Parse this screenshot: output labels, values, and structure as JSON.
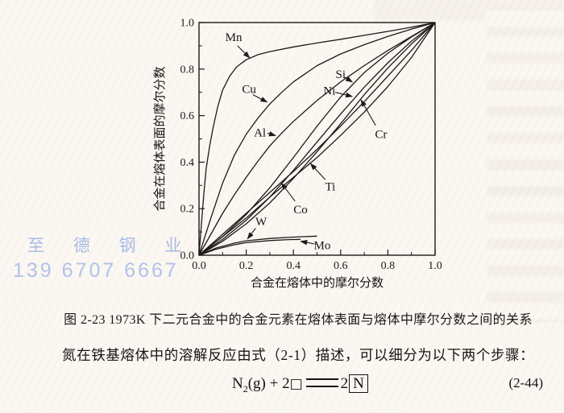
{
  "page": {
    "watermark_line1": "至 德 钢 业",
    "watermark_line2": "139 6707 6667",
    "watermark_color": "#a0b4e4",
    "caption": "图 2-23  1973K 下二元合金中的合金元素在熔体表面与熔体中摩尔分数之间的关系",
    "body_text": "氮在铁基熔体中的溶解反应由式（2-1）描述，可以细分为以下两个步骤：",
    "equation": {
      "element": "N",
      "sub": "2",
      "state": "(g)",
      "plus": "+",
      "coeff_left": "2",
      "vacancy": "□",
      "coeff_right": "2",
      "boxed": "N",
      "number": "(2-44)"
    }
  },
  "chart_data": {
    "type": "line",
    "title": "",
    "xlabel": "合金在熔体中的摩尔分数",
    "ylabel": "合金在熔体表面的摩尔分数",
    "xlim": [
      0,
      1
    ],
    "ylim": [
      0,
      1
    ],
    "grid": false,
    "legend": "inline-labels-with-arrows",
    "x_ticks": [
      {
        "v": 0.0,
        "label": "0.0"
      },
      {
        "v": 0.2,
        "label": "0.2"
      },
      {
        "v": 0.4,
        "label": "0.4"
      },
      {
        "v": 0.6,
        "label": "0.6"
      },
      {
        "v": 0.8,
        "label": "0.8"
      },
      {
        "v": 1.0,
        "label": "1.0"
      }
    ],
    "y_ticks": [
      {
        "v": 0.0,
        "label": "0.0"
      },
      {
        "v": 0.2,
        "label": "0.2"
      },
      {
        "v": 0.4,
        "label": "0.4"
      },
      {
        "v": 0.6,
        "label": "0.6"
      },
      {
        "v": 0.8,
        "label": "0.8"
      },
      {
        "v": 1.0,
        "label": "1.0"
      }
    ],
    "minor_ticks": [
      0.1,
      0.3,
      0.5,
      0.7,
      0.9
    ],
    "line_color": "#1c1a18",
    "series": [
      {
        "name": "Mn",
        "points": [
          [
            0,
            0
          ],
          [
            0.01,
            0.13
          ],
          [
            0.02,
            0.26
          ],
          [
            0.03,
            0.37
          ],
          [
            0.045,
            0.47
          ],
          [
            0.06,
            0.55
          ],
          [
            0.08,
            0.64
          ],
          [
            0.1,
            0.71
          ],
          [
            0.13,
            0.77
          ],
          [
            0.16,
            0.81
          ],
          [
            0.2,
            0.84
          ],
          [
            0.25,
            0.862
          ],
          [
            0.3,
            0.875
          ],
          [
            0.4,
            0.895
          ],
          [
            0.5,
            0.912
          ],
          [
            0.6,
            0.928
          ],
          [
            0.7,
            0.945
          ],
          [
            0.8,
            0.962
          ],
          [
            0.9,
            0.98
          ],
          [
            1,
            1
          ]
        ]
      },
      {
        "name": "Cu",
        "points": [
          [
            0,
            0
          ],
          [
            0.05,
            0.16
          ],
          [
            0.1,
            0.31
          ],
          [
            0.15,
            0.43
          ],
          [
            0.2,
            0.52
          ],
          [
            0.25,
            0.59
          ],
          [
            0.3,
            0.65
          ],
          [
            0.35,
            0.7
          ],
          [
            0.4,
            0.745
          ],
          [
            0.5,
            0.815
          ],
          [
            0.6,
            0.865
          ],
          [
            0.7,
            0.905
          ],
          [
            0.8,
            0.94
          ],
          [
            0.9,
            0.972
          ],
          [
            1,
            1
          ]
        ]
      },
      {
        "name": "Al",
        "points": [
          [
            0,
            0
          ],
          [
            0.05,
            0.09
          ],
          [
            0.1,
            0.18
          ],
          [
            0.15,
            0.26
          ],
          [
            0.2,
            0.335
          ],
          [
            0.25,
            0.405
          ],
          [
            0.3,
            0.47
          ],
          [
            0.35,
            0.525
          ],
          [
            0.4,
            0.575
          ],
          [
            0.5,
            0.665
          ],
          [
            0.6,
            0.745
          ],
          [
            0.7,
            0.815
          ],
          [
            0.8,
            0.88
          ],
          [
            0.9,
            0.94
          ],
          [
            1,
            1
          ]
        ]
      },
      {
        "name": "Si",
        "points": [
          [
            0,
            0
          ],
          [
            0.1,
            0.08
          ],
          [
            0.2,
            0.175
          ],
          [
            0.3,
            0.29
          ],
          [
            0.4,
            0.42
          ],
          [
            0.5,
            0.555
          ],
          [
            0.6,
            0.68
          ],
          [
            0.7,
            0.785
          ],
          [
            0.8,
            0.868
          ],
          [
            0.9,
            0.938
          ],
          [
            1,
            1
          ]
        ]
      },
      {
        "name": "Ni",
        "points": [
          [
            0,
            0
          ],
          [
            0.1,
            0.068
          ],
          [
            0.2,
            0.15
          ],
          [
            0.3,
            0.25
          ],
          [
            0.4,
            0.365
          ],
          [
            0.5,
            0.487
          ],
          [
            0.6,
            0.607
          ],
          [
            0.7,
            0.722
          ],
          [
            0.8,
            0.827
          ],
          [
            0.9,
            0.92
          ],
          [
            1,
            1
          ]
        ]
      },
      {
        "name": "Cr",
        "points": [
          [
            0,
            0
          ],
          [
            0.1,
            0.06
          ],
          [
            0.2,
            0.135
          ],
          [
            0.3,
            0.225
          ],
          [
            0.4,
            0.33
          ],
          [
            0.5,
            0.445
          ],
          [
            0.6,
            0.565
          ],
          [
            0.7,
            0.69
          ],
          [
            0.8,
            0.805
          ],
          [
            0.9,
            0.908
          ],
          [
            1,
            1
          ]
        ]
      },
      {
        "name": "Ti",
        "points": [
          [
            0,
            0
          ],
          [
            0.1,
            0.08
          ],
          [
            0.2,
            0.16
          ],
          [
            0.3,
            0.25
          ],
          [
            0.4,
            0.335
          ],
          [
            0.5,
            0.42
          ],
          [
            0.6,
            0.515
          ],
          [
            0.7,
            0.615
          ],
          [
            0.8,
            0.725
          ],
          [
            0.9,
            0.85
          ],
          [
            1,
            1
          ]
        ]
      },
      {
        "name": "Co",
        "points": [
          [
            0,
            0
          ],
          [
            0.1,
            0.09
          ],
          [
            0.2,
            0.18
          ],
          [
            0.3,
            0.27
          ],
          [
            0.4,
            0.36
          ],
          [
            0.5,
            0.455
          ],
          [
            0.6,
            0.555
          ],
          [
            0.7,
            0.66
          ],
          [
            0.8,
            0.77
          ],
          [
            0.9,
            0.88
          ],
          [
            1,
            1
          ]
        ]
      },
      {
        "name": "W",
        "points": [
          [
            0,
            0
          ],
          [
            0.07,
            0.03
          ],
          [
            0.15,
            0.052
          ],
          [
            0.2,
            0.062
          ],
          [
            0.3,
            0.072
          ],
          [
            0.4,
            0.078
          ],
          [
            0.5,
            0.082
          ]
        ]
      },
      {
        "name": "Mo",
        "points": [
          [
            0,
            0
          ],
          [
            0.07,
            0.025
          ],
          [
            0.15,
            0.045
          ],
          [
            0.2,
            0.054
          ],
          [
            0.3,
            0.063
          ],
          [
            0.38,
            0.067
          ],
          [
            0.43,
            0.068
          ]
        ]
      }
    ],
    "annotations": [
      {
        "text": "Mn",
        "label": [
          0.147,
          0.938
        ],
        "tail": [
          0.163,
          0.9
        ],
        "tip": [
          0.215,
          0.848
        ]
      },
      {
        "text": "Cu",
        "label": [
          0.212,
          0.714
        ],
        "tail": [
          0.228,
          0.69
        ],
        "tip": [
          0.289,
          0.658
        ]
      },
      {
        "text": "Al",
        "label": [
          0.258,
          0.528
        ],
        "tail": [
          0.29,
          0.524
        ],
        "tip": [
          0.325,
          0.514
        ]
      },
      {
        "text": "Si",
        "label": [
          0.6,
          0.779
        ],
        "tail": [
          0.617,
          0.765
        ],
        "tip": [
          0.65,
          0.744
        ]
      },
      {
        "text": "Ni",
        "label": [
          0.552,
          0.707
        ],
        "tail": [
          0.577,
          0.7
        ],
        "tip": [
          0.65,
          0.682
        ]
      },
      {
        "text": "Cr",
        "label": [
          0.771,
          0.521
        ],
        "tail": [
          0.748,
          0.558
        ],
        "tip": [
          0.686,
          0.668
        ]
      },
      {
        "text": "Ti",
        "label": [
          0.556,
          0.295
        ],
        "tail": [
          0.535,
          0.325
        ],
        "tip": [
          0.472,
          0.394
        ]
      },
      {
        "text": "Co",
        "label": [
          0.43,
          0.198
        ],
        "tail": [
          0.407,
          0.232
        ],
        "tip": [
          0.349,
          0.31
        ]
      },
      {
        "text": "W",
        "label": [
          0.263,
          0.146
        ],
        "tail": [
          0.24,
          0.116
        ],
        "tip": [
          0.205,
          0.07
        ]
      },
      {
        "text": "Mo",
        "label": [
          0.522,
          0.044
        ],
        "tail": [
          0.49,
          0.048
        ],
        "tip": [
          0.43,
          0.06
        ]
      }
    ]
  }
}
